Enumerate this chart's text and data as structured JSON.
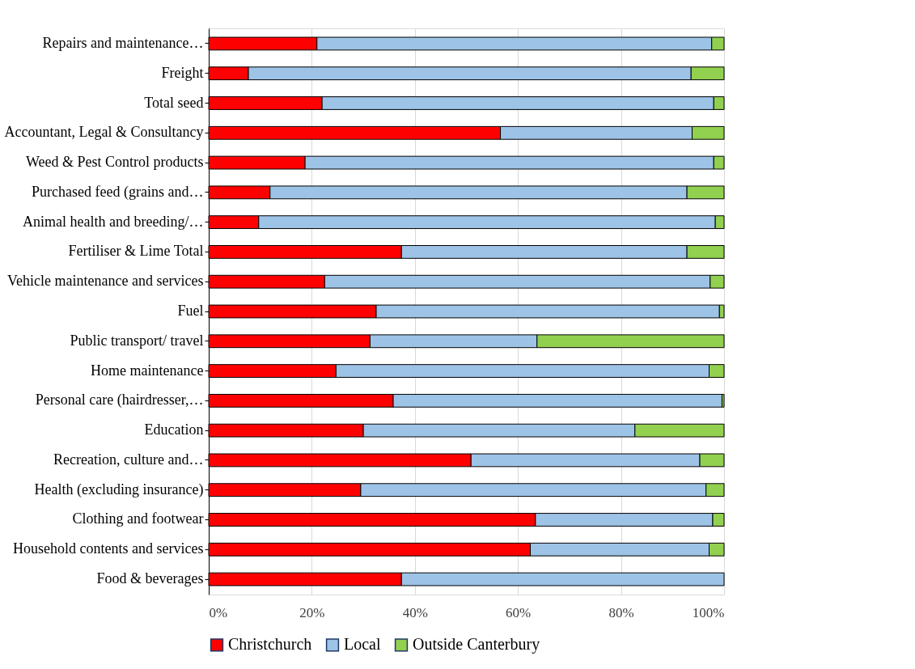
{
  "chart_data": {
    "type": "bar",
    "orientation": "horizontal",
    "stacked": true,
    "categories": [
      "Repairs and maintenance…",
      "Freight",
      "Total seed",
      "Accountant, Legal & Consultancy",
      "Weed & Pest Control products",
      "Purchased feed (grains and…",
      "Animal health and breeding/…",
      "Fertiliser & Lime Total",
      "Vehicle maintenance and services",
      "Fuel",
      "Public transport/ travel",
      "Home maintenance",
      "Personal care (hairdresser,…",
      "Education",
      "Recreation, culture and…",
      "Health (excluding insurance)",
      "Clothing and footwear",
      "Household contents and services",
      "Food & beverages"
    ],
    "series": [
      {
        "name": "Christchurch",
        "color": "#ff0000",
        "values": [
          21.0,
          7.7,
          22.0,
          56.6,
          18.7,
          11.9,
          9.7,
          37.4,
          22.5,
          32.5,
          31.3,
          24.7,
          35.8,
          30.0,
          50.9,
          29.5,
          63.4,
          62.4,
          37.4
        ]
      },
      {
        "name": "Local",
        "color": "#9dc3e6",
        "values": [
          76.6,
          85.9,
          76.0,
          37.2,
          79.3,
          80.9,
          88.6,
          55.4,
          74.8,
          66.6,
          32.4,
          72.4,
          63.8,
          52.7,
          44.4,
          67.0,
          34.4,
          34.7,
          62.6
        ]
      },
      {
        "name": "Outside Canterbury",
        "color": "#92d050",
        "values": [
          2.4,
          6.4,
          2.0,
          6.2,
          2.0,
          7.2,
          1.7,
          7.2,
          2.7,
          0.9,
          36.3,
          2.9,
          0.4,
          17.3,
          4.7,
          3.5,
          2.2,
          2.9,
          null
        ]
      }
    ],
    "xlim": [
      0,
      100
    ],
    "xticks": [
      {
        "value": 0,
        "label": "0%"
      },
      {
        "value": 20,
        "label": "20%"
      },
      {
        "value": 40,
        "label": "40%"
      },
      {
        "value": 60,
        "label": "60%"
      },
      {
        "value": 80,
        "label": "80%"
      },
      {
        "value": 100,
        "label": "100%"
      }
    ],
    "grid": "x",
    "legend": "bottom"
  }
}
